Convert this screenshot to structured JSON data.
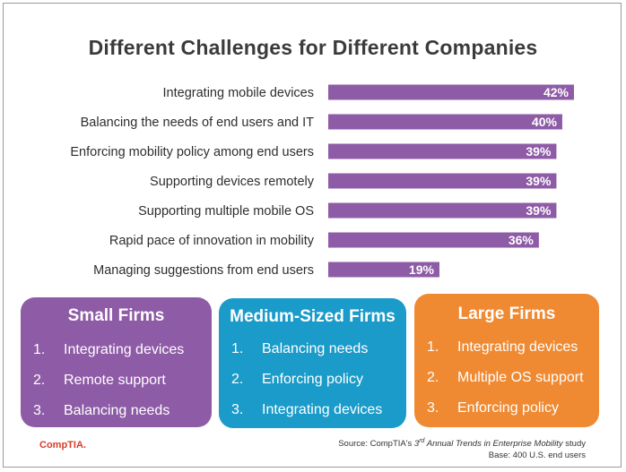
{
  "chart_data": {
    "type": "bar",
    "orientation": "horizontal",
    "title": "Different Challenges for Different Companies",
    "categories": [
      "Integrating mobile devices",
      "Balancing the needs of end users and IT",
      "Enforcing mobility policy among end users",
      "Supporting devices remotely",
      "Supporting multiple mobile OS",
      "Rapid pace of innovation in mobility",
      "Managing suggestions from end users"
    ],
    "values": [
      42,
      40,
      39,
      39,
      39,
      36,
      19
    ],
    "value_labels": [
      "42%",
      "40%",
      "39%",
      "39%",
      "39%",
      "36%",
      "19%"
    ],
    "unit": "%",
    "xlim": [
      0,
      42
    ],
    "xlabel": "",
    "ylabel": "",
    "grid": false,
    "bar_color": "#8e5ba6"
  },
  "panels": {
    "small": {
      "title": "Small Firms",
      "color": "#8e5ba6",
      "items": [
        {
          "num": "1.",
          "text": "Integrating devices"
        },
        {
          "num": "2.",
          "text": "Remote support"
        },
        {
          "num": "3.",
          "text": "Balancing needs"
        }
      ]
    },
    "medium": {
      "title": "Medium-Sized Firms",
      "color": "#1a9bc9",
      "items": [
        {
          "num": "1.",
          "text": "Balancing needs"
        },
        {
          "num": "2.",
          "text": "Enforcing policy"
        },
        {
          "num": "3.",
          "text": "Integrating devices"
        }
      ]
    },
    "large": {
      "title": "Large Firms",
      "color": "#ef8a33",
      "items": [
        {
          "num": "1.",
          "text": "Integrating devices"
        },
        {
          "num": "2.",
          "text": "Multiple OS support"
        },
        {
          "num": "3.",
          "text": "Enforcing policy"
        }
      ]
    }
  },
  "footer": {
    "logo": "CompTIA.",
    "source_prefix": "Source: CompTIA's ",
    "source_ordinal": "3",
    "source_ordinal_sup": "rd",
    "source_title": " Annual Trends in Enterprise Mobility",
    "source_suffix": " study",
    "base": "Base: 400 U.S. end users"
  }
}
